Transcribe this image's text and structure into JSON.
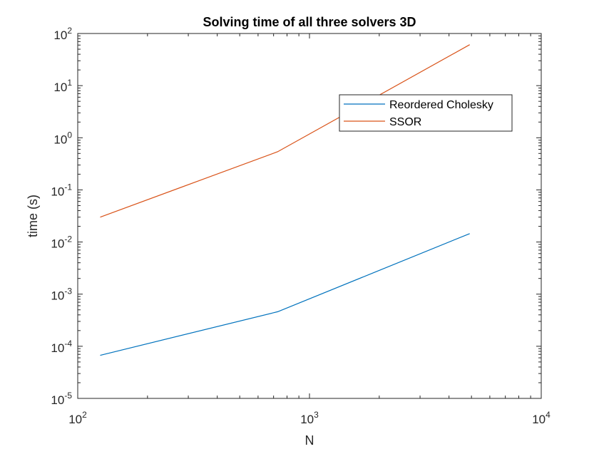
{
  "chart_data": {
    "type": "line",
    "title": "Solving time of all three solvers 3D",
    "xlabel": "N",
    "ylabel": "time (s)",
    "xscale": "log",
    "yscale": "log",
    "xlim": [
      100,
      10000
    ],
    "ylim": [
      1e-05,
      100
    ],
    "x_ticks": [
      {
        "base": "10",
        "exp": "2",
        "value": 100
      },
      {
        "base": "10",
        "exp": "3",
        "value": 1000
      },
      {
        "base": "10",
        "exp": "4",
        "value": 10000
      }
    ],
    "y_ticks": [
      {
        "base": "10",
        "exp": "2",
        "value": 100
      },
      {
        "base": "10",
        "exp": "1",
        "value": 10
      },
      {
        "base": "10",
        "exp": "0",
        "value": 1
      },
      {
        "base": "10",
        "exp": "-1",
        "value": 0.1
      },
      {
        "base": "10",
        "exp": "-2",
        "value": 0.01
      },
      {
        "base": "10",
        "exp": "-3",
        "value": 0.001
      },
      {
        "base": "10",
        "exp": "-4",
        "value": 0.0001
      },
      {
        "base": "10",
        "exp": "-5",
        "value": 1e-05
      }
    ],
    "grid": false,
    "legend_position": "upper right",
    "series": [
      {
        "name": "Reordered Cholesky",
        "color": "#0072BD",
        "x": [
          125,
          729,
          4913
        ],
        "y": [
          6.7e-05,
          0.00046,
          0.0145
        ]
      },
      {
        "name": "SSOR",
        "color": "#D95319",
        "x": [
          125,
          729,
          4913
        ],
        "y": [
          0.03,
          0.54,
          61
        ]
      }
    ]
  }
}
